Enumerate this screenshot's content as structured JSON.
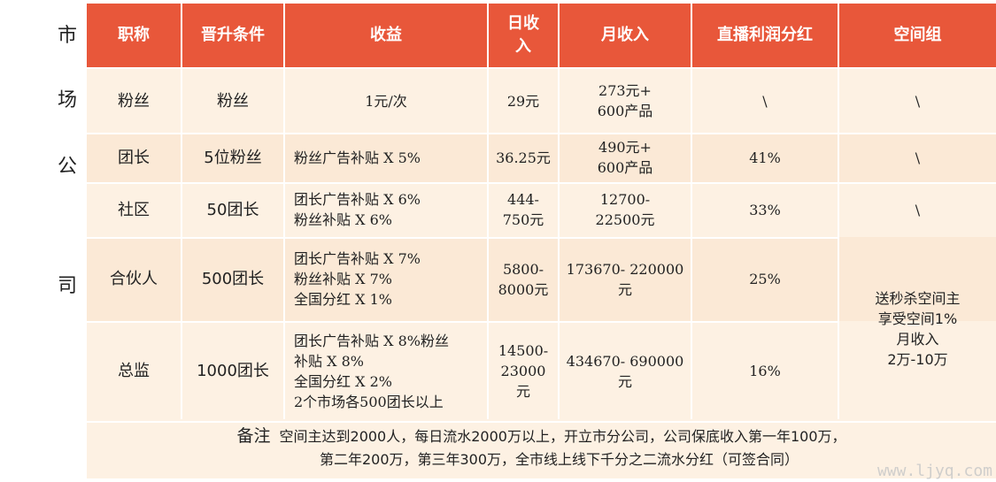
{
  "side_label": [
    "市",
    "场",
    "公",
    "司"
  ],
  "headers": [
    "职称",
    "晋升条件",
    "收益",
    "日收入",
    "月收入",
    "直播利润分红",
    "空间组"
  ],
  "rows": [
    {
      "title": "粉丝",
      "condition": "粉丝",
      "income": [
        "1元/次"
      ],
      "daily": [
        "29元"
      ],
      "monthly": [
        "273元+",
        "600产品"
      ],
      "dividend": "\\",
      "space": "\\"
    },
    {
      "title": "团长",
      "condition": "5位粉丝",
      "income": [
        "粉丝广告补贴 X 5%"
      ],
      "daily": [
        "36.25元"
      ],
      "monthly": [
        "490元+",
        "600产品"
      ],
      "dividend": "41%",
      "space": "\\"
    },
    {
      "title": "社区",
      "condition": "50团长",
      "income": [
        "团长广告补贴 X 6%",
        "粉丝补贴 X 6%"
      ],
      "daily": [
        "444-",
        "750元"
      ],
      "monthly": [
        "12700-",
        "22500元"
      ],
      "dividend": "33%",
      "space": "\\"
    },
    {
      "title": "合伙人",
      "condition": "500团长",
      "income": [
        "团长广告补贴 X 7%",
        "粉丝补贴 X 7%",
        "全国分红 X 1%"
      ],
      "daily": [
        "5800-",
        "8000元"
      ],
      "monthly": [
        "173670- 220000",
        "元"
      ],
      "dividend": "25%",
      "space": ""
    },
    {
      "title": "总监",
      "condition": "1000团长",
      "income": [
        "团长广告补贴 X 8%粉丝",
        "补贴 X 8%",
        "全国分红 X 2%",
        "2个市场各500团长以上"
      ],
      "daily": [
        "14500-",
        "23000",
        "元"
      ],
      "monthly": [
        "434670- 690000",
        "元"
      ],
      "dividend": "16%",
      "space": ""
    }
  ],
  "space_merged": [
    "送秒杀空间主",
    "享受空间1%",
    "月收入",
    "2万-10万"
  ],
  "note": {
    "label": "备注",
    "line1": "空间主达到2000人，每日流水2000万以上，开立市分公司，公司保底收入第一年100万，",
    "line2": "第二年200万，第三年300万，全市线上线下千分之二流水分红（可签合同）"
  },
  "watermark": "www.ljyq.com",
  "colors": {
    "header": "#e8573a",
    "row_light": "#fdf1e3",
    "row_alt": "#fbe9d6"
  }
}
